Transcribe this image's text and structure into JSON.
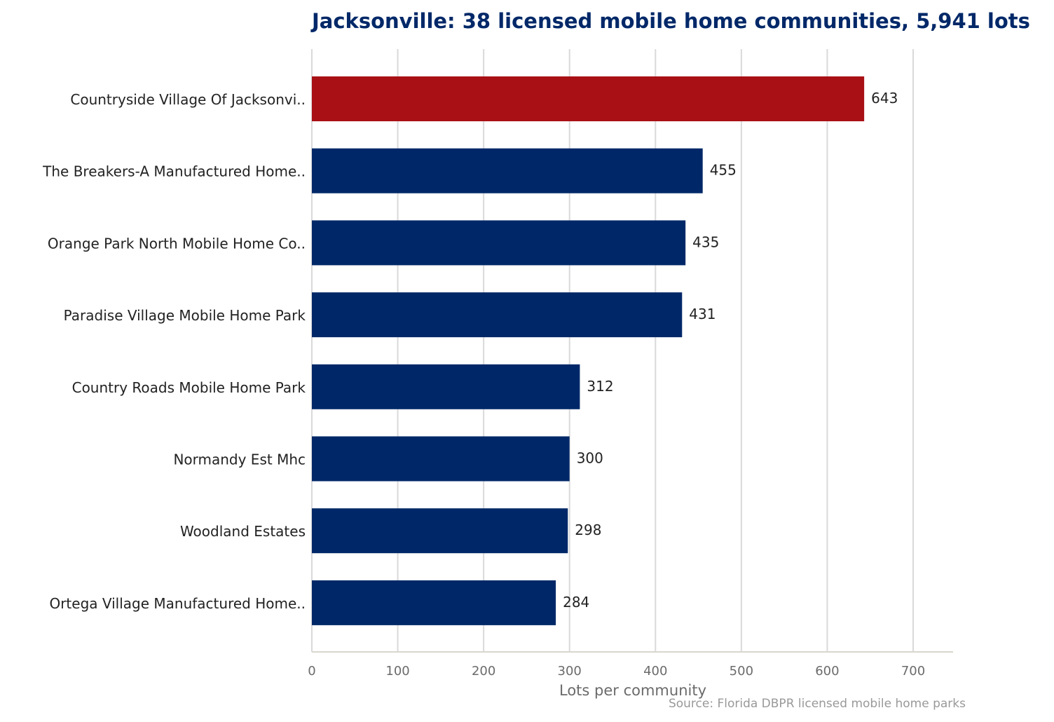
{
  "chart_data": {
    "type": "bar",
    "orientation": "horizontal",
    "title": "Jacksonville: 38 licensed mobile home communities, 5,941 lots",
    "xlabel": "Lots per community",
    "ylabel": "",
    "source": "Source: Florida DBPR licensed mobile home parks",
    "categories": [
      "Countryside Village Of Jacksonvi..",
      "The Breakers-A Manufactured Home..",
      "Orange Park North Mobile Home Co..",
      "Paradise Village Mobile Home Park",
      "Country Roads Mobile Home Park",
      "Normandy Est Mhc",
      "Woodland Estates",
      "Ortega Village Manufactured Home.."
    ],
    "values": [
      643,
      455,
      435,
      431,
      312,
      300,
      298,
      284
    ],
    "xlim": [
      0,
      746
    ],
    "xticks": [
      0,
      100,
      200,
      300,
      400,
      500,
      600,
      700
    ],
    "grid": true,
    "colors": {
      "highlight": "#a81016",
      "bar": "#002868",
      "title": "#002868"
    },
    "highlight_index": 0
  }
}
